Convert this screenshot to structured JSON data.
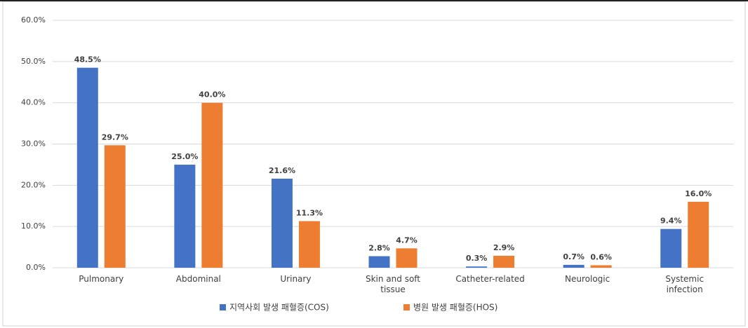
{
  "chart_data": {
    "type": "bar",
    "categories": [
      "Pulmonary",
      "Abdominal",
      "Urinary",
      "Skin and soft tissue",
      "Catheter-related",
      "Neurologic",
      "Systemic infection"
    ],
    "series": [
      {
        "name": "지역사회 발생 패혈증(COS)",
        "color": "#4472c4",
        "values": [
          48.5,
          25.0,
          21.6,
          2.8,
          0.3,
          0.7,
          9.4
        ],
        "value_labels": [
          "48.5%",
          "25.0%",
          "21.6%",
          "2.8%",
          "0.3%",
          "0.7%",
          "9.4%"
        ]
      },
      {
        "name": "병원 발생 패혈증(HOS)",
        "color": "#ed7d31",
        "values": [
          29.7,
          40.0,
          11.3,
          4.7,
          2.9,
          0.6,
          16.0
        ],
        "value_labels": [
          "29.7%",
          "40.0%",
          "11.3%",
          "4.7%",
          "2.9%",
          "0.6%",
          "16.0%"
        ]
      }
    ],
    "ylim": [
      0,
      60
    ],
    "yticks": [
      {
        "value": 0,
        "label": "0.0%"
      },
      {
        "value": 10,
        "label": "10.0%"
      },
      {
        "value": 20,
        "label": "20.0%"
      },
      {
        "value": 30,
        "label": "30.0%"
      },
      {
        "value": 40,
        "label": "40.0%"
      },
      {
        "value": 50,
        "label": "50.0%"
      },
      {
        "value": 60,
        "label": "60.0%"
      }
    ],
    "grid": true,
    "legend": "bottom"
  }
}
